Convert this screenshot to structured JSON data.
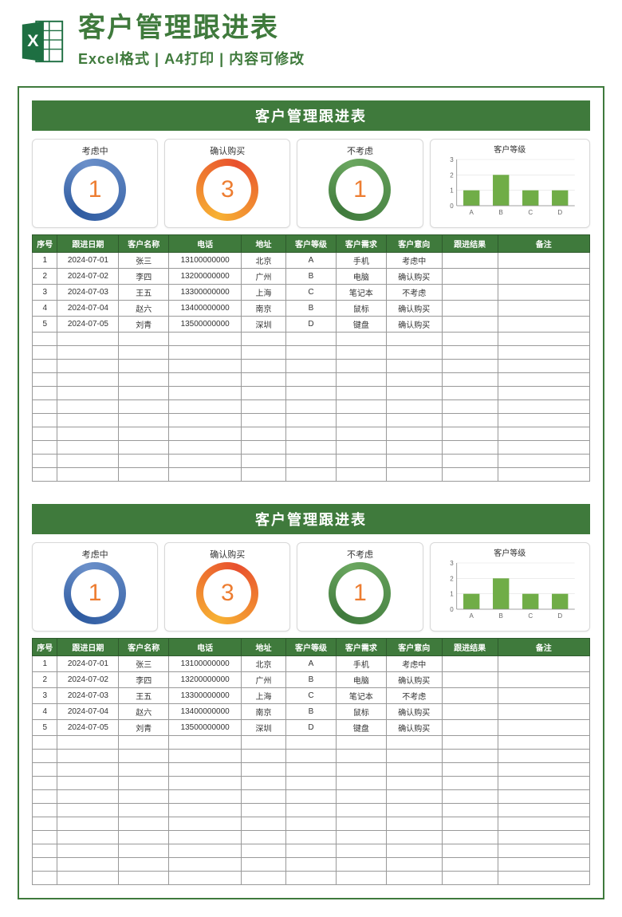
{
  "header": {
    "main_title": "客户管理跟进表",
    "sub_title": "Excel格式 | A4打印 | 内容可修改"
  },
  "colors": {
    "brand_green": "#3f7a3c",
    "accent_orange": "#ed7d31",
    "ring_blue": "#2d5aa0",
    "ring_orange_start": "#f7b133",
    "ring_orange_end": "#e8502e",
    "ring_green": "#3f7a3c",
    "bar_fill": "#70ad47",
    "grid": "#d0d0d0",
    "axis": "#888888"
  },
  "sheet": {
    "banner": "客户管理跟进表",
    "stats": [
      {
        "label": "考虑中",
        "value": "1",
        "ring_style": "blue"
      },
      {
        "label": "确认购买",
        "value": "3",
        "ring_style": "orange"
      },
      {
        "label": "不考虑",
        "value": "1",
        "ring_style": "green"
      }
    ],
    "chart": {
      "title": "客户等级",
      "type": "bar",
      "categories": [
        "A",
        "B",
        "C",
        "D"
      ],
      "values": [
        1,
        2,
        1,
        1
      ],
      "ymax": 3,
      "ytick_step": 1,
      "bar_fill": "#70ad47",
      "grid_color": "#e0e0e0",
      "axis_color": "#888888",
      "label_fontsize": 8
    },
    "columns": [
      "序号",
      "跟进日期",
      "客户名称",
      "电话",
      "地址",
      "客户等级",
      "客户需求",
      "客户意向",
      "跟进结果",
      "备注"
    ],
    "rows": [
      [
        "1",
        "2024-07-01",
        "张三",
        "13100000000",
        "北京",
        "A",
        "手机",
        "考虑中",
        "",
        ""
      ],
      [
        "2",
        "2024-07-02",
        "李四",
        "13200000000",
        "广州",
        "B",
        "电脑",
        "确认购买",
        "",
        ""
      ],
      [
        "3",
        "2024-07-03",
        "王五",
        "13300000000",
        "上海",
        "C",
        "笔记本",
        "不考虑",
        "",
        ""
      ],
      [
        "4",
        "2024-07-04",
        "赵六",
        "13400000000",
        "南京",
        "B",
        "鼠标",
        "确认购买",
        "",
        ""
      ],
      [
        "5",
        "2024-07-05",
        "刘青",
        "13500000000",
        "深圳",
        "D",
        "键盘",
        "确认购买",
        "",
        ""
      ]
    ],
    "blank_rows": 11
  }
}
